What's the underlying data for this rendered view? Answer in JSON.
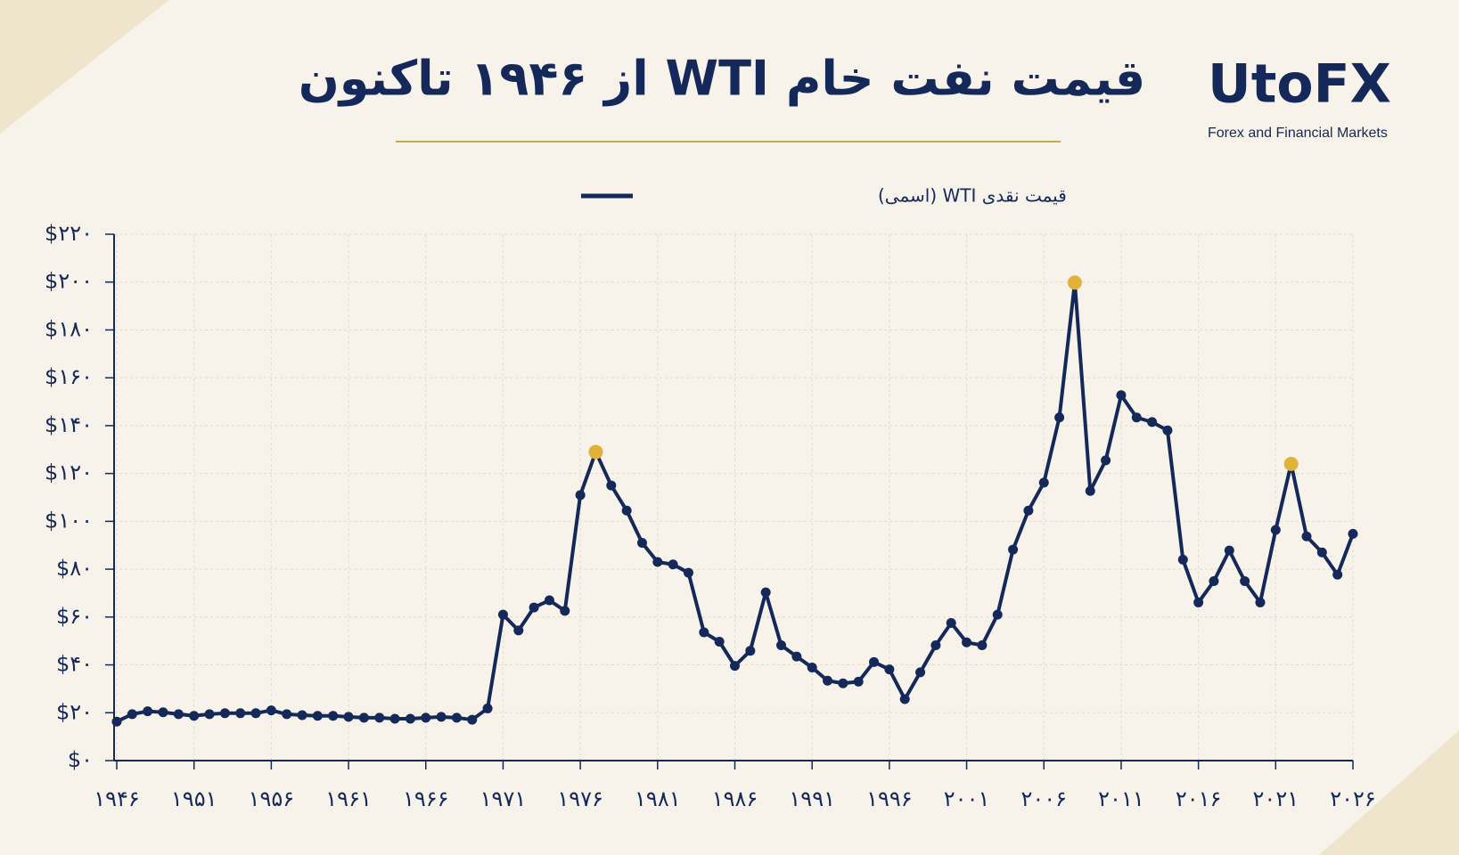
{
  "chart_data": {
    "type": "line",
    "title": "قیمت نفت خام WTI از ۱۹۴۶ تاکنون",
    "logo": "UtoFX",
    "logo_subtitle": "Forex and Financial Markets",
    "x": [
      1946,
      1947,
      1948,
      1949,
      1950,
      1951,
      1952,
      1953,
      1954,
      1955,
      1956,
      1957,
      1958,
      1959,
      1960,
      1961,
      1962,
      1963,
      1964,
      1965,
      1966,
      1967,
      1968,
      1969,
      1970,
      1971,
      1972,
      1973,
      1974,
      1975,
      1976,
      1977,
      1978,
      1979,
      1980,
      1981,
      1982,
      1983,
      1984,
      1985,
      1986,
      1987,
      1988,
      1989,
      1990,
      1991,
      1992,
      1993,
      1994,
      1995,
      1996,
      1997,
      1998,
      1999,
      2000,
      2001,
      2002,
      2003,
      2004,
      2005,
      2006,
      2007,
      2008,
      2009,
      2010,
      2011,
      2012,
      2013,
      2014,
      2015,
      2016,
      2017,
      2018,
      2019,
      2020,
      2021,
      2022,
      2023,
      2024,
      2025,
      2026
    ],
    "series": [
      {
        "name": "قیمت نقدی WTI (اسمی)",
        "color": "#14285a",
        "values": [
          16.3,
          19.4,
          20.6,
          20.2,
          19.4,
          18.7,
          19.4,
          19.8,
          19.8,
          19.8,
          21,
          19.4,
          19,
          18.7,
          18.7,
          18.3,
          17.9,
          17.9,
          17.5,
          17.5,
          17.9,
          18.3,
          17.9,
          17.1,
          21.8,
          61,
          54.4,
          64,
          67,
          62.6,
          111,
          129,
          115,
          104.5,
          91,
          83,
          82,
          78.5,
          53.6,
          49.7,
          39.6,
          45.9,
          70.3,
          48.2,
          43.5,
          38.9,
          33.4,
          32.3,
          33,
          41.2,
          38.1,
          25.7,
          36.9,
          48.2,
          57.5,
          49.4,
          48.2,
          61,
          88.2,
          104.5,
          116.2,
          143.4,
          199.8,
          112.7,
          125.5,
          152.7,
          143.4,
          141.5,
          138,
          84,
          66.1,
          75,
          87.8,
          75,
          66.1,
          96.4,
          124,
          93.7,
          87,
          77.7,
          94.8
        ]
      }
    ],
    "highlights": [
      31,
      62,
      76
    ],
    "highlight_color": "#e0b23a",
    "xlim": [
      1946,
      2026
    ],
    "xticks": [
      {
        "value": 1946,
        "label": "۱۹۴۶"
      },
      {
        "value": 1951,
        "label": "۱۹۵۱"
      },
      {
        "value": 1956,
        "label": "۱۹۵۶"
      },
      {
        "value": 1961,
        "label": "۱۹۶۱"
      },
      {
        "value": 1966,
        "label": "۱۹۶۶"
      },
      {
        "value": 1971,
        "label": "۱۹۷۱"
      },
      {
        "value": 1976,
        "label": "۱۹۷۶"
      },
      {
        "value": 1981,
        "label": "۱۹۸۱"
      },
      {
        "value": 1986,
        "label": "۱۹۸۶"
      },
      {
        "value": 1991,
        "label": "۱۹۹۱"
      },
      {
        "value": 1996,
        "label": "۱۹۹۶"
      },
      {
        "value": 2001,
        "label": "۲۰۰۱"
      },
      {
        "value": 2006,
        "label": "۲۰۰۶"
      },
      {
        "value": 2011,
        "label": "۲۰۱۱"
      },
      {
        "value": 2016,
        "label": "۲۰۱۶"
      },
      {
        "value": 2021,
        "label": "۲۰۲۱"
      },
      {
        "value": 2026,
        "label": "۲۰۲۶"
      }
    ],
    "ylim": [
      0,
      220
    ],
    "yticks": [
      {
        "value": 0,
        "label": "$۰"
      },
      {
        "value": 20,
        "label": "$۲۰"
      },
      {
        "value": 40,
        "label": "$۴۰"
      },
      {
        "value": 60,
        "label": "$۶۰"
      },
      {
        "value": 80,
        "label": "$۸۰"
      },
      {
        "value": 100,
        "label": "$۱۰۰"
      },
      {
        "value": 120,
        "label": "$۱۲۰"
      },
      {
        "value": 140,
        "label": "$۱۴۰"
      },
      {
        "value": 160,
        "label": "$۱۶۰"
      },
      {
        "value": 180,
        "label": "$۱۸۰"
      },
      {
        "value": 200,
        "label": "$۲۰۰"
      },
      {
        "value": 220,
        "label": "$۲۲۰"
      }
    ],
    "grid": true
  }
}
